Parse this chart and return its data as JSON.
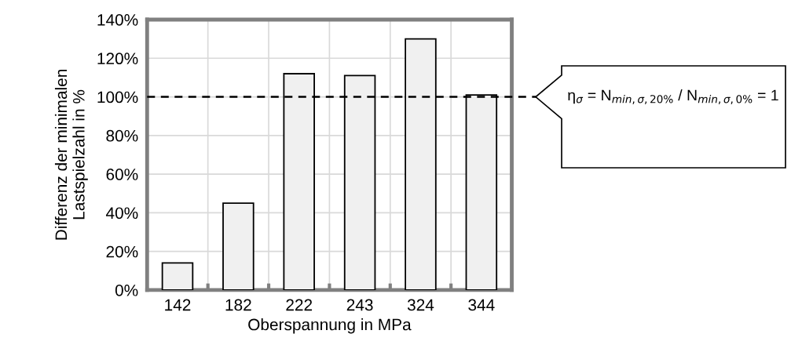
{
  "chart_data": {
    "type": "bar",
    "xlabel": "Oberspannung in MPa",
    "ylabel": "Differenz der minimalen\nLastspielzahl in %",
    "categories": [
      "142",
      "182",
      "222",
      "243",
      "324",
      "344"
    ],
    "values": [
      14,
      45,
      112,
      111,
      130,
      101
    ],
    "color": "#f0f0f0",
    "ylim": [
      0,
      140
    ],
    "yticks": [
      {
        "value": 0,
        "label": "0%"
      },
      {
        "value": 20,
        "label": "20%"
      },
      {
        "value": 40,
        "label": "40%"
      },
      {
        "value": 60,
        "label": "60%"
      },
      {
        "value": 80,
        "label": "80%"
      },
      {
        "value": 100,
        "label": "100%"
      },
      {
        "value": 120,
        "label": "120%"
      },
      {
        "value": 140,
        "label": "140%"
      }
    ],
    "grid": true,
    "annotations": [
      "η$_{σ}$ = N$_{min,σ,20%}$ / N$_{min,σ,0%}$ = 1"
    ],
    "ref_lines": [
      {
        "axis": "y",
        "value": 100,
        "color": "#000000",
        "line_style": "dashed"
      }
    ]
  }
}
